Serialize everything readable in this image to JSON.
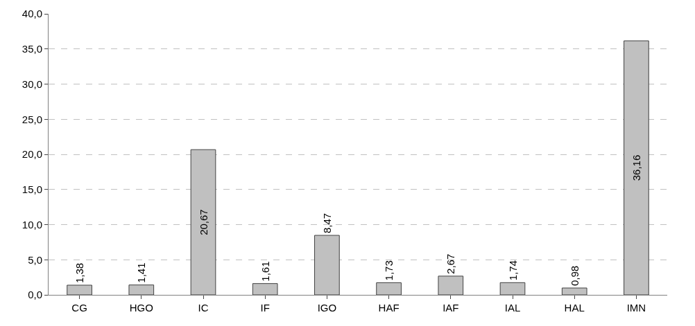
{
  "chart_data": {
    "type": "bar",
    "categories": [
      "CG",
      "HGO",
      "IC",
      "IF",
      "IGO",
      "HAF",
      "IAF",
      "IAL",
      "HAL",
      "IMN"
    ],
    "values": [
      1.38,
      1.41,
      20.67,
      1.61,
      8.47,
      1.73,
      2.67,
      1.74,
      0.98,
      36.16
    ],
    "value_labels": [
      "1,38",
      "1,41",
      "20,67",
      "1,61",
      "8,47",
      "1,73",
      "2,67",
      "1,74",
      "0,98",
      "36,16"
    ],
    "color": "#c0c0c0",
    "ylim": [
      0,
      40
    ],
    "yticks": [
      {
        "value": 0,
        "label": "0,0"
      },
      {
        "value": 5,
        "label": "5,0"
      },
      {
        "value": 10,
        "label": "10,0"
      },
      {
        "value": 15,
        "label": "15,0"
      },
      {
        "value": 20,
        "label": "20,0"
      },
      {
        "value": 25,
        "label": "25,0"
      },
      {
        "value": 30,
        "label": "30,0"
      },
      {
        "value": 35,
        "label": "35,0"
      },
      {
        "value": 40,
        "label": "40,0"
      }
    ],
    "grid": "y"
  }
}
